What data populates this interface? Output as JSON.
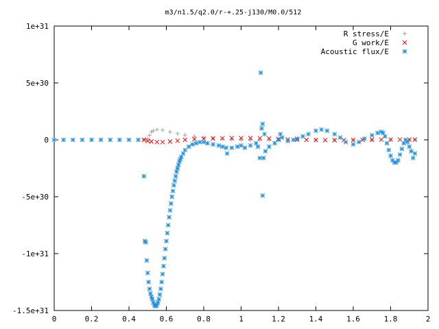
{
  "chart_data": {
    "type": "scatter",
    "title": "m3/n1.5/q2.0/r-+.25-j130/M0.0/512",
    "xlabel": "",
    "ylabel": "",
    "xlim": [
      0,
      2
    ],
    "ylim": [
      -1.5e+31,
      1e+31
    ],
    "x_ticks": [
      "0",
      "0.2",
      "0.4",
      "0.6",
      "0.8",
      "1",
      "1.2",
      "1.4",
      "1.6",
      "1.8",
      "2"
    ],
    "y_ticks": [
      "1e+31",
      "5e+30",
      "0",
      "-5e+30",
      "-1e+31",
      "-1.5e+31"
    ],
    "x_tick_values": [
      0,
      0.2,
      0.4,
      0.6,
      0.8,
      1.0,
      1.2,
      1.4,
      1.6,
      1.8,
      2.0
    ],
    "y_tick_values": [
      1e+31,
      5e+30,
      0,
      -5e+30,
      -1e+31,
      -1.5e+31
    ],
    "grid": false,
    "legend_position": "top-right",
    "series": [
      {
        "name": "R stress/E",
        "marker": "+",
        "color": "#a0a0a0",
        "points": [
          [
            0.0,
            0
          ],
          [
            0.2,
            0
          ],
          [
            0.4,
            0
          ],
          [
            0.48,
            0
          ],
          [
            0.5,
            1e+29
          ],
          [
            0.51,
            4e+29
          ],
          [
            0.52,
            7e+29
          ],
          [
            0.53,
            8e+29
          ],
          [
            0.55,
            9e+29
          ],
          [
            0.58,
            8.5e+29
          ],
          [
            0.62,
            7e+29
          ],
          [
            0.66,
            5.5e+29
          ],
          [
            0.7,
            4.2e+29
          ],
          [
            0.75,
            3e+29
          ],
          [
            0.8,
            2e+29
          ],
          [
            0.85,
            1.2e+29
          ],
          [
            0.9,
            6e+28
          ],
          [
            0.95,
            2e+28
          ],
          [
            1.0,
            0.0
          ],
          [
            1.05,
            -2e+28
          ],
          [
            1.1,
            -3e+28
          ],
          [
            1.15,
            -2e+28
          ],
          [
            1.2,
            0.0
          ],
          [
            1.3,
            2e+28
          ],
          [
            1.4,
            1e+28
          ],
          [
            1.5,
            0.0
          ],
          [
            1.6,
            -1e+28
          ],
          [
            1.7,
            0.0
          ],
          [
            1.8,
            0.0
          ],
          [
            1.9,
            0.0
          ],
          [
            1.93,
            0.0
          ]
        ]
      },
      {
        "name": "G work/E",
        "marker": "x",
        "color": "#ff0000",
        "points": [
          [
            0.48,
            0.0
          ],
          [
            0.5,
            -1e+29
          ],
          [
            0.52,
            -1.5e+29
          ],
          [
            0.55,
            -2e+29
          ],
          [
            0.58,
            -2e+29
          ],
          [
            0.62,
            -1.5e+29
          ],
          [
            0.66,
            -8e+28
          ],
          [
            0.7,
            0.0
          ],
          [
            0.75,
            6e+28
          ],
          [
            0.8,
            1e+29
          ],
          [
            0.85,
            1.2e+29
          ],
          [
            0.9,
            1.4e+29
          ],
          [
            0.95,
            1.5e+29
          ],
          [
            1.0,
            1.5e+29
          ],
          [
            1.05,
            1.5e+29
          ],
          [
            1.1,
            1.4e+29
          ],
          [
            1.15,
            1.2e+29
          ],
          [
            1.2,
            8e+28
          ],
          [
            1.25,
            5e+28
          ],
          [
            1.3,
            2e+28
          ],
          [
            1.35,
            0.0
          ],
          [
            1.4,
            -2e+28
          ],
          [
            1.45,
            -3e+28
          ],
          [
            1.5,
            -4e+28
          ],
          [
            1.55,
            -3e+28
          ],
          [
            1.6,
            -2e+28
          ],
          [
            1.65,
            0.0
          ],
          [
            1.7,
            1e+28
          ],
          [
            1.75,
            2e+28
          ],
          [
            1.8,
            2e+28
          ],
          [
            1.85,
            2e+28
          ],
          [
            1.9,
            2e+28
          ],
          [
            1.93,
            2e+28
          ]
        ]
      },
      {
        "name": "Acoustic flux/E",
        "marker": "*",
        "color": "#1f8fdf",
        "points": [
          [
            0.0,
            0
          ],
          [
            0.05,
            0
          ],
          [
            0.1,
            0
          ],
          [
            0.15,
            0
          ],
          [
            0.2,
            0
          ],
          [
            0.25,
            0
          ],
          [
            0.3,
            0
          ],
          [
            0.35,
            0
          ],
          [
            0.4,
            0
          ],
          [
            0.45,
            0
          ],
          [
            0.48,
            -3.2e+30
          ],
          [
            0.485,
            -8.9e+30
          ],
          [
            0.49,
            -9e+30
          ],
          [
            0.495,
            -1.06e+31
          ],
          [
            0.5,
            -1.17e+31
          ],
          [
            0.505,
            -1.25e+31
          ],
          [
            0.51,
            -1.31e+31
          ],
          [
            0.515,
            -1.35e+31
          ],
          [
            0.52,
            -1.38e+31
          ],
          [
            0.525,
            -1.4e+31
          ],
          [
            0.53,
            -1.43e+31
          ],
          [
            0.535,
            -1.45e+31
          ],
          [
            0.54,
            -1.46e+31
          ],
          [
            0.545,
            -1.46e+31
          ],
          [
            0.55,
            -1.45e+31
          ],
          [
            0.555,
            -1.43e+31
          ],
          [
            0.56,
            -1.4e+31
          ],
          [
            0.565,
            -1.36e+31
          ],
          [
            0.57,
            -1.31e+31
          ],
          [
            0.575,
            -1.25e+31
          ],
          [
            0.58,
            -1.18e+31
          ],
          [
            0.585,
            -1.11e+31
          ],
          [
            0.59,
            -1.04e+31
          ],
          [
            0.595,
            -9.6e+30
          ],
          [
            0.6,
            -8.9e+30
          ],
          [
            0.605,
            -8.2e+30
          ],
          [
            0.61,
            -7.5e+30
          ],
          [
            0.615,
            -6.8e+30
          ],
          [
            0.62,
            -6.2e+30
          ],
          [
            0.625,
            -5.6e+30
          ],
          [
            0.63,
            -5e+30
          ],
          [
            0.635,
            -4.5e+30
          ],
          [
            0.64,
            -4e+30
          ],
          [
            0.645,
            -3.6e+30
          ],
          [
            0.65,
            -3.2e+30
          ],
          [
            0.655,
            -2.8e+30
          ],
          [
            0.66,
            -2.5e+30
          ],
          [
            0.665,
            -2.2e+30
          ],
          [
            0.67,
            -1.9e+30
          ],
          [
            0.675,
            -1.7e+30
          ],
          [
            0.68,
            -1.5e+30
          ],
          [
            0.69,
            -1.2e+30
          ],
          [
            0.7,
            -9e+29
          ],
          [
            0.72,
            -6e+29
          ],
          [
            0.74,
            -4e+29
          ],
          [
            0.76,
            -3e+29
          ],
          [
            0.78,
            -2e+29
          ],
          [
            0.8,
            -2e+29
          ],
          [
            0.82,
            -3e+29
          ],
          [
            0.85,
            -4e+29
          ],
          [
            0.88,
            -5e+29
          ],
          [
            0.9,
            -6e+29
          ],
          [
            0.92,
            -7e+29
          ],
          [
            0.925,
            -1.2e+30
          ],
          [
            0.95,
            -7e+29
          ],
          [
            0.98,
            -6e+29
          ],
          [
            1.0,
            -5e+29
          ],
          [
            1.02,
            -7e+29
          ],
          [
            1.05,
            -5e+29
          ],
          [
            1.08,
            -3e+29
          ],
          [
            1.09,
            -6e+29
          ],
          [
            1.1,
            -1.6e+30
          ],
          [
            1.105,
            5.9e+30
          ],
          [
            1.11,
            1e+30
          ],
          [
            1.115,
            1.4e+30
          ],
          [
            1.12,
            -1.6e+30
          ],
          [
            1.115,
            -4.9e+30
          ],
          [
            1.125,
            5e+29
          ],
          [
            1.13,
            -1e+30
          ],
          [
            1.15,
            -6e+29
          ],
          [
            1.18,
            -3e+29
          ],
          [
            1.2,
            0.0
          ],
          [
            1.21,
            5e+29
          ],
          [
            1.22,
            2e+29
          ],
          [
            1.25,
            -1e+29
          ],
          [
            1.28,
            0.0
          ],
          [
            1.3,
            1e+29
          ],
          [
            1.33,
            3e+29
          ],
          [
            1.36,
            5e+29
          ],
          [
            1.4,
            8e+29
          ],
          [
            1.43,
            9e+29
          ],
          [
            1.46,
            8e+29
          ],
          [
            1.5,
            5e+29
          ],
          [
            1.53,
            2e+29
          ],
          [
            1.56,
            -2e+29
          ],
          [
            1.6,
            -4e+29
          ],
          [
            1.63,
            -2e+29
          ],
          [
            1.66,
            1e+29
          ],
          [
            1.7,
            4e+29
          ],
          [
            1.73,
            6e+29
          ],
          [
            1.75,
            7e+29
          ],
          [
            1.76,
            6e+29
          ],
          [
            1.77,
            3e+29
          ],
          [
            1.78,
            -3e+29
          ],
          [
            1.79,
            -9e+29
          ],
          [
            1.8,
            -1.4e+30
          ],
          [
            1.81,
            -1.8e+30
          ],
          [
            1.82,
            -2e+30
          ],
          [
            1.83,
            -2e+30
          ],
          [
            1.84,
            -1.8e+30
          ],
          [
            1.85,
            -1.3e+30
          ],
          [
            1.86,
            -8e+29
          ],
          [
            1.87,
            -3e+29
          ],
          [
            1.88,
            0.0
          ],
          [
            1.89,
            -2e+29
          ],
          [
            1.9,
            -6e+29
          ],
          [
            1.91,
            -1e+30
          ],
          [
            1.92,
            -1.6e+30
          ],
          [
            1.93,
            -1.2e+30
          ]
        ]
      }
    ]
  }
}
